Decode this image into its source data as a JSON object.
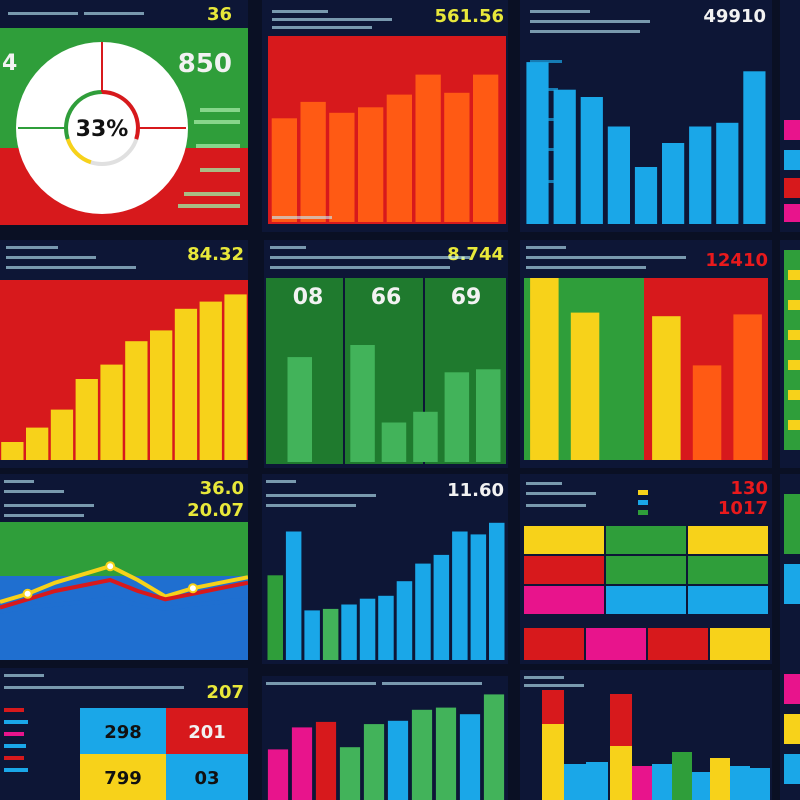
{
  "colors": {
    "background": "#0a1024",
    "panel": "#0d1636",
    "green": "#2f9e3a",
    "red": "#d7191c",
    "orange": "#ff5a14",
    "blue": "#1aa7e8",
    "yellow": "#f7d21a",
    "magenta": "#e8148c",
    "lightgreen": "#42b35a",
    "text_yellow": "#e8e83a",
    "text_white": "#f2f2f2"
  },
  "panels": [
    {
      "id": "p1",
      "values": {
        "top": "36",
        "main": "850",
        "left": "4",
        "gauge": "33%"
      }
    },
    {
      "id": "p2",
      "values": {
        "top": "561.56"
      }
    },
    {
      "id": "p3",
      "values": {
        "top": "49910"
      }
    },
    {
      "id": "p4",
      "values": {
        "top": "84.32"
      }
    },
    {
      "id": "p5",
      "values": {
        "top": "8.744",
        "a": "08",
        "b": "66",
        "c": "69"
      }
    },
    {
      "id": "p6",
      "values": {
        "top": "12410"
      }
    },
    {
      "id": "p7",
      "values": {
        "top": "36.0",
        "second": "20.07"
      }
    },
    {
      "id": "p8",
      "values": {
        "top": "11.60"
      }
    },
    {
      "id": "p9",
      "values": {
        "top": "130",
        "second": "1017"
      }
    },
    {
      "id": "p10",
      "values": {
        "top": "207",
        "tl": "298",
        "tr": "201",
        "bl": "799",
        "br": "03"
      }
    }
  ],
  "chart_data": [
    {
      "type": "pie",
      "panel": "p1",
      "values": [
        33,
        67
      ],
      "colors": [
        "#2f9e3a",
        "#d7191c"
      ]
    },
    {
      "type": "bar",
      "panel": "p2",
      "values": [
        57,
        66,
        60,
        63,
        70,
        81,
        71,
        81
      ],
      "ylim": [
        0,
        100
      ],
      "color": "#ff5a14"
    },
    {
      "type": "bar",
      "panel": "p3",
      "values": [
        88,
        73,
        69,
        53,
        31,
        44,
        53,
        55,
        83
      ],
      "ylim": [
        0,
        100
      ],
      "color": "#1aa7e8"
    },
    {
      "type": "bar",
      "panel": "p4",
      "values": [
        10,
        18,
        28,
        45,
        53,
        66,
        72,
        84,
        88,
        92
      ],
      "ylim": [
        0,
        100
      ],
      "color": "#f7d21a"
    },
    {
      "type": "bar",
      "panel": "p5",
      "values": [
        69,
        0,
        77,
        26,
        33,
        59,
        61
      ],
      "ylim": [
        0,
        100
      ],
      "color": "#42b35a"
    },
    {
      "type": "bar",
      "panel": "p6",
      "values": [
        100,
        81,
        0,
        79,
        52,
        80
      ],
      "ylim": [
        0,
        100
      ],
      "colors": [
        "#f7d21a",
        "#f7d21a",
        "#d7191c",
        "#f7d21a",
        "#ff5a14",
        "#ff5a14"
      ]
    },
    {
      "type": "line",
      "panel": "p7",
      "x": [
        0,
        1,
        2,
        3,
        4,
        5,
        6,
        7,
        8,
        9
      ],
      "series": [
        {
          "values": [
            42,
            48,
            56,
            62,
            68,
            58,
            46,
            52,
            56,
            60
          ],
          "color": "#f7d21a"
        },
        {
          "values": [
            38,
            44,
            50,
            54,
            58,
            50,
            44,
            48,
            52,
            56
          ],
          "color": "#d7191c"
        },
        {
          "values": [
            35,
            38,
            40,
            42,
            45,
            40,
            37,
            40,
            42,
            44
          ],
          "color": "#1f6fd0"
        }
      ],
      "ylim": [
        0,
        100
      ]
    },
    {
      "type": "bar",
      "panel": "p8",
      "values": [
        58,
        88,
        34,
        35,
        38,
        42,
        44,
        54,
        66,
        72,
        88,
        86,
        94
      ],
      "ylim": [
        0,
        100
      ],
      "colors": [
        "#2f9e3a",
        "#1aa7e8",
        "#1aa7e8",
        "#42b35a",
        "#1aa7e8",
        "#1aa7e8",
        "#1aa7e8",
        "#1aa7e8",
        "#1aa7e8",
        "#1aa7e8",
        "#1aa7e8",
        "#1aa7e8",
        "#1aa7e8"
      ]
    },
    {
      "type": "heatmap",
      "panel": "p9",
      "rows": 4,
      "cols": 3
    },
    {
      "type": "bar",
      "panel": "p10",
      "values": [
        46,
        66,
        71,
        48,
        69,
        72,
        82,
        84,
        78,
        96
      ],
      "ylim": [
        0,
        100
      ],
      "colors": [
        "#e8148c",
        "#e8148c",
        "#d7191c",
        "#42b35a",
        "#42b35a",
        "#1aa7e8",
        "#42b35a",
        "#42b35a",
        "#1aa7e8",
        "#42b35a"
      ]
    }
  ]
}
